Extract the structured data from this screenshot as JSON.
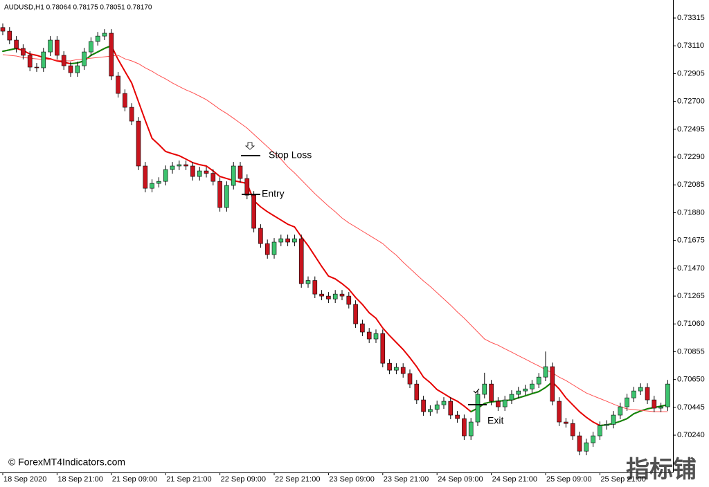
{
  "chart_data": {
    "type": "candlestick",
    "title": "AUDUSD,H1  0.78064 0.78175 0.78051 0.78170",
    "categories": [
      "18 Sep 2020",
      null,
      null,
      null,
      null,
      null,
      null,
      null,
      "18 Sep 21:00",
      null,
      null,
      null,
      null,
      null,
      null,
      null,
      "21 Sep 09:00",
      null,
      null,
      null,
      null,
      null,
      null,
      null,
      "21 Sep 21:00",
      null,
      null,
      null,
      null,
      null,
      null,
      null,
      "22 Sep 09:00",
      null,
      null,
      null,
      null,
      null,
      null,
      null,
      "22 Sep 21:00",
      null,
      null,
      null,
      null,
      null,
      null,
      null,
      "23 Sep 09:00",
      null,
      null,
      null,
      null,
      null,
      null,
      null,
      "23 Sep 21:00",
      null,
      null,
      null,
      null,
      null,
      null,
      null,
      "24 Sep 09:00",
      null,
      null,
      null,
      null,
      null,
      null,
      null,
      "24 Sep 21:00",
      null,
      null,
      null,
      null,
      null,
      null,
      null,
      "25 Sep 09:00",
      null,
      null,
      null,
      null,
      null,
      null,
      null,
      "25 Sep 21:00",
      null,
      null,
      null,
      null,
      null,
      null,
      null,
      null,
      null,
      null
    ],
    "open": [
      0.73245,
      0.73218,
      0.73152,
      0.73091,
      0.7304,
      0.72953,
      0.72948,
      0.73065,
      0.73152,
      0.7304,
      0.72963,
      0.72912,
      0.72963,
      0.73065,
      0.73142,
      0.73182,
      0.73203,
      0.72887,
      0.72759,
      0.72657,
      0.72555,
      0.72224,
      0.7206,
      0.72096,
      0.72111,
      0.72198,
      0.72224,
      0.72234,
      0.72224,
      0.72147,
      0.72188,
      0.7217,
      0.72111,
      0.71918,
      0.72081,
      0.72224,
      0.72132,
      0.72009,
      0.71765,
      0.71652,
      0.71571,
      0.71663,
      0.71688,
      0.71663,
      0.71688,
      0.71357,
      0.7138,
      0.7128,
      0.71265,
      0.71244,
      0.7128,
      0.71265,
      0.71204,
      0.71061,
      0.71,
      0.70949,
      0.70989,
      0.7077,
      0.70719,
      0.7074,
      0.70694,
      0.70617,
      0.705,
      0.70413,
      0.7043,
      0.70464,
      0.7049,
      0.70388,
      0.70362,
      0.70235,
      0.70337,
      0.70541,
      0.70617,
      0.7049,
      0.70449,
      0.705,
      0.70541,
      0.70566,
      0.70581,
      0.70617,
      0.70668,
      0.70745,
      0.7049,
      0.70337,
      0.70326,
      0.70235,
      0.70122,
      0.70184,
      0.70235,
      0.70311,
      0.7032,
      0.70388,
      0.70449,
      0.70515,
      0.70566,
      0.70592,
      0.705,
      0.70439,
      0.70449
    ],
    "high": [
      0.73275,
      0.73248,
      0.73182,
      0.73121,
      0.7307,
      0.72983,
      0.73095,
      0.73182,
      0.73182,
      0.7307,
      0.72993,
      0.72993,
      0.73095,
      0.73172,
      0.73212,
      0.73233,
      0.73233,
      0.72917,
      0.72789,
      0.72687,
      0.72585,
      0.72254,
      0.72126,
      0.72141,
      0.72228,
      0.72254,
      0.72264,
      0.72264,
      0.72254,
      0.72218,
      0.72218,
      0.722,
      0.72141,
      0.72111,
      0.72254,
      0.72254,
      0.72162,
      0.72039,
      0.71795,
      0.71682,
      0.71693,
      0.71718,
      0.71718,
      0.71718,
      0.71718,
      0.7141,
      0.7141,
      0.7131,
      0.71295,
      0.7131,
      0.7131,
      0.71295,
      0.71234,
      0.71091,
      0.7103,
      0.71019,
      0.71019,
      0.708,
      0.7077,
      0.7077,
      0.70724,
      0.70647,
      0.7053,
      0.7046,
      0.70494,
      0.7052,
      0.7052,
      0.70418,
      0.70392,
      0.70367,
      0.70571,
      0.707,
      0.70647,
      0.7052,
      0.7053,
      0.70571,
      0.70596,
      0.70611,
      0.70647,
      0.70698,
      0.70857,
      0.70775,
      0.7052,
      0.70367,
      0.70356,
      0.70265,
      0.70214,
      0.70265,
      0.70341,
      0.7035,
      0.70418,
      0.70479,
      0.70545,
      0.70596,
      0.70622,
      0.70622,
      0.7053,
      0.70479,
      0.70647
    ],
    "low": [
      0.73188,
      0.73122,
      0.73061,
      0.7301,
      0.72923,
      0.72918,
      0.72918,
      0.73035,
      0.7301,
      0.72933,
      0.72882,
      0.72882,
      0.72933,
      0.73035,
      0.73112,
      0.73152,
      0.72857,
      0.72729,
      0.72627,
      0.72525,
      0.72194,
      0.7203,
      0.7203,
      0.72066,
      0.72081,
      0.72168,
      0.72194,
      0.72194,
      0.72117,
      0.72117,
      0.7214,
      0.72081,
      0.71888,
      0.71888,
      0.72051,
      0.72102,
      0.71979,
      0.71735,
      0.71622,
      0.71541,
      0.71541,
      0.71633,
      0.71633,
      0.71633,
      0.71327,
      0.71327,
      0.7125,
      0.71235,
      0.71214,
      0.71214,
      0.71235,
      0.71174,
      0.71031,
      0.7097,
      0.70919,
      0.70919,
      0.7074,
      0.70689,
      0.70689,
      0.70664,
      0.70587,
      0.7047,
      0.70383,
      0.70383,
      0.704,
      0.70434,
      0.70358,
      0.70332,
      0.70205,
      0.70205,
      0.70307,
      0.70511,
      0.7046,
      0.70419,
      0.70419,
      0.7047,
      0.70511,
      0.70536,
      0.70551,
      0.70587,
      0.70638,
      0.7046,
      0.70307,
      0.70296,
      0.70205,
      0.70092,
      0.70092,
      0.70154,
      0.70205,
      0.70281,
      0.7029,
      0.70358,
      0.70419,
      0.70485,
      0.70536,
      0.7047,
      0.70409,
      0.70409,
      0.70419
    ],
    "close": [
      0.73218,
      0.73152,
      0.73091,
      0.7304,
      0.72953,
      0.72948,
      0.73065,
      0.73152,
      0.7304,
      0.72963,
      0.72912,
      0.72963,
      0.73065,
      0.73142,
      0.73182,
      0.73203,
      0.72887,
      0.72759,
      0.72657,
      0.72555,
      0.72224,
      0.7206,
      0.72096,
      0.72111,
      0.72198,
      0.72224,
      0.72234,
      0.72224,
      0.72147,
      0.72188,
      0.7217,
      0.72111,
      0.71918,
      0.72081,
      0.72224,
      0.72132,
      0.72009,
      0.71765,
      0.71652,
      0.71571,
      0.71663,
      0.71688,
      0.71663,
      0.71688,
      0.71357,
      0.7138,
      0.7128,
      0.71265,
      0.71244,
      0.7128,
      0.71265,
      0.71204,
      0.71061,
      0.71,
      0.70949,
      0.70989,
      0.7077,
      0.70719,
      0.7074,
      0.70694,
      0.70617,
      0.705,
      0.70413,
      0.7043,
      0.70464,
      0.7049,
      0.70388,
      0.70362,
      0.70235,
      0.70337,
      0.70541,
      0.70617,
      0.7049,
      0.70449,
      0.705,
      0.70541,
      0.70566,
      0.70581,
      0.70617,
      0.70668,
      0.70745,
      0.7049,
      0.70337,
      0.70326,
      0.70235,
      0.70122,
      0.70184,
      0.70235,
      0.70311,
      0.7032,
      0.70388,
      0.70449,
      0.70515,
      0.70566,
      0.70592,
      0.705,
      0.70439,
      0.70449,
      0.70617
    ],
    "up_color": "#3cc36e",
    "down_color": "#c8141e",
    "lines": [
      {
        "color": "#e60000",
        "up_color": "#0a8a0a",
        "values": [
          0.7307,
          0.7308,
          0.73091,
          0.73075,
          0.7305,
          0.7304,
          0.73024,
          0.73014,
          0.72999,
          0.72989,
          0.72978,
          0.72984,
          0.72999,
          0.7304,
          0.73065,
          0.73091,
          0.73111,
          0.73009,
          0.72922,
          0.72836,
          0.72698,
          0.7256,
          0.72428,
          0.72382,
          0.72331,
          0.72315,
          0.723,
          0.72275,
          0.72249,
          0.72234,
          0.72224,
          0.72188,
          0.72147,
          0.72132,
          0.72117,
          0.72106,
          0.72096,
          0.71969,
          0.71923,
          0.71887,
          0.71856,
          0.71826,
          0.71795,
          0.71775,
          0.71703,
          0.71637,
          0.71561,
          0.71484,
          0.71413,
          0.71392,
          0.71357,
          0.71316,
          0.71255,
          0.71204,
          0.71142,
          0.71102,
          0.7103,
          0.70974,
          0.70923,
          0.70872,
          0.70811,
          0.70745,
          0.70668,
          0.70627,
          0.70576,
          0.70546,
          0.70515,
          0.7049,
          0.70454,
          0.70413,
          0.70439,
          0.70474,
          0.70485,
          0.7049,
          0.70495,
          0.705,
          0.70515,
          0.7053,
          0.70546,
          0.70561,
          0.70592,
          0.70632,
          0.70581,
          0.70515,
          0.70464,
          0.70413,
          0.70372,
          0.70337,
          0.70311,
          0.70316,
          0.70326,
          0.70342,
          0.70362,
          0.70398,
          0.70418,
          0.70434,
          0.70444,
          0.70454,
          0.70464
        ]
      },
      {
        "color": "#ff5050",
        "values": [
          0.73045,
          0.7304,
          0.73035,
          0.73024,
          0.73019,
          0.73014,
          0.73009,
          0.73009,
          0.73004,
          0.72999,
          0.72999,
          0.73009,
          0.73014,
          0.73019,
          0.73024,
          0.73029,
          0.73035,
          0.7304,
          0.73014,
          0.72999,
          0.72978,
          0.72948,
          0.72922,
          0.72892,
          0.72866,
          0.72836,
          0.7281,
          0.72785,
          0.72764,
          0.72739,
          0.72713,
          0.72678,
          0.72642,
          0.72611,
          0.72576,
          0.7254,
          0.72504,
          0.72458,
          0.72412,
          0.72366,
          0.72321,
          0.72275,
          0.72219,
          0.72173,
          0.72122,
          0.72071,
          0.7202,
          0.71974,
          0.71928,
          0.71887,
          0.71841,
          0.71805,
          0.71775,
          0.71744,
          0.71714,
          0.71683,
          0.71652,
          0.71607,
          0.71566,
          0.71515,
          0.71469,
          0.71423,
          0.71377,
          0.71336,
          0.7129,
          0.71244,
          0.71198,
          0.71148,
          0.71102,
          0.71051,
          0.71,
          0.70949,
          0.70923,
          0.70903,
          0.70877,
          0.70852,
          0.70826,
          0.70801,
          0.70775,
          0.7075,
          0.70724,
          0.70699,
          0.70668,
          0.70643,
          0.70612,
          0.70581,
          0.70551,
          0.7053,
          0.7051,
          0.7049,
          0.70469,
          0.70449,
          0.70434,
          0.70428,
          0.70423,
          0.70418,
          0.70413,
          0.70413,
          0.70413
        ]
      }
    ],
    "ylim": [
      0.69965,
      0.73407
    ],
    "yticks": [
      {
        "value": 0.73315,
        "label": "0.73315"
      },
      {
        "value": 0.7311,
        "label": "0.73110"
      },
      {
        "value": 0.72905,
        "label": "0.72905"
      },
      {
        "value": 0.727,
        "label": "0.72700"
      },
      {
        "value": 0.72495,
        "label": "0.72495"
      },
      {
        "value": 0.7229,
        "label": "0.72290"
      },
      {
        "value": 0.72085,
        "label": "0.72085"
      },
      {
        "value": 0.7188,
        "label": "0.71880"
      },
      {
        "value": 0.71675,
        "label": "0.71675"
      },
      {
        "value": 0.7147,
        "label": "0.71470"
      },
      {
        "value": 0.71265,
        "label": "0.71265"
      },
      {
        "value": 0.7106,
        "label": "0.71060"
      },
      {
        "value": 0.70855,
        "label": "0.70855"
      },
      {
        "value": 0.7065,
        "label": "0.70650"
      },
      {
        "value": 0.70445,
        "label": "0.70445"
      },
      {
        "value": 0.7024,
        "label": "0.70240"
      }
    ],
    "annotations": [
      "Stop Loss",
      "Entry",
      "Exit"
    ],
    "watermark": "© ForexMT4Indicators.com",
    "logo": "指标铺"
  }
}
